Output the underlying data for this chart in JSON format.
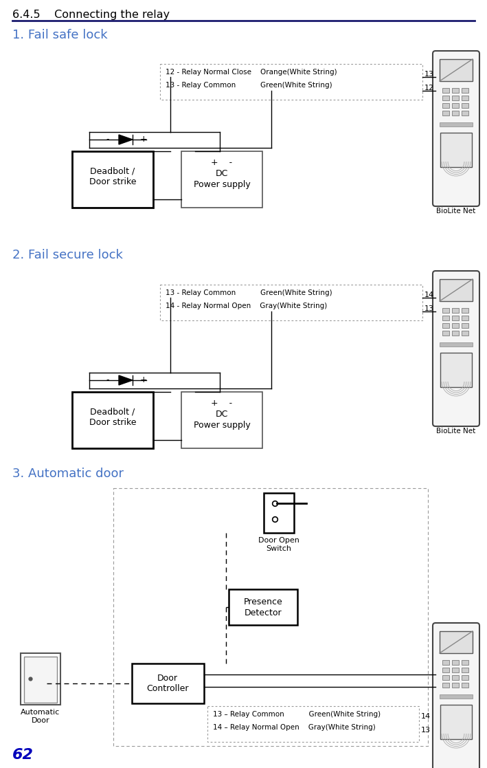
{
  "title": "6.4.5    Connecting the relay",
  "section1_title": "1. Fail safe lock",
  "section2_title": "2. Fail secure lock",
  "section3_title": "3. Automatic door",
  "page_number": "62",
  "bg_color": "#ffffff",
  "title_color": "#000000",
  "section_title_color": "#4472c4",
  "page_num_color": "#0000bb",
  "biolite_label": "BioLite Net",
  "d1_info_lines": [
    "12 - Relay Normal Close    Orange(White String)",
    "13 - Relay Common           Green(White String)"
  ],
  "d1_labels": [
    "13",
    "12"
  ],
  "d1_box1": [
    "Deadbolt /",
    "Door strike"
  ],
  "d1_box2": [
    "+    -",
    "DC",
    "Power supply"
  ],
  "d2_info_lines": [
    "13 - Relay Common           Green(White String)",
    "14 - Relay Normal Open    Gray(White String)"
  ],
  "d2_labels": [
    "14",
    "13"
  ],
  "d2_box1": [
    "Deadbolt /",
    "Door strike"
  ],
  "d2_box2": [
    "+    -",
    "DC",
    "Power supply"
  ],
  "d3_labels": [
    "14",
    "13"
  ],
  "d3_box_dc": [
    "Door",
    "Controller"
  ],
  "d3_box_dos": [
    "Door Open",
    "Switch"
  ],
  "d3_box_pd": [
    "Presence",
    "Detector"
  ],
  "d3_box_ad": [
    "Automatic",
    "Door"
  ],
  "d3_info_lines": [
    "13 – Relay Common           Green(White String)",
    "14 – Relay Normal Open    Gray(White String)"
  ]
}
